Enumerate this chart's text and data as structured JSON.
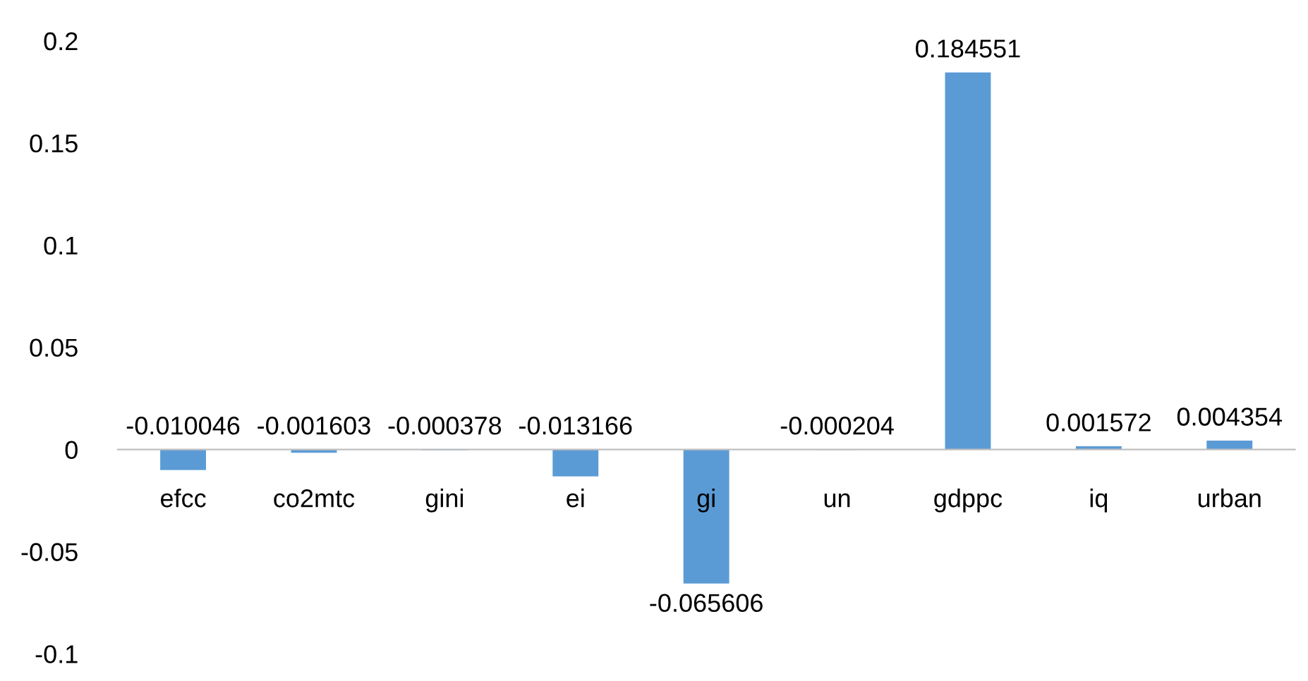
{
  "chart_data": {
    "type": "bar",
    "categories": [
      "efcc",
      "co2mtc",
      "gini",
      "ei",
      "gi",
      "un",
      "gdppc",
      "iq",
      "urban"
    ],
    "values": [
      -0.010046,
      -0.001603,
      -0.000378,
      -0.013166,
      -0.065606,
      -0.000204,
      0.184551,
      0.001572,
      0.004354
    ],
    "color": "#5b9bd5",
    "ylim": [
      -0.1,
      0.2
    ],
    "yticks": [
      -0.1,
      -0.05,
      0,
      0.05,
      0.1,
      0.15,
      0.2
    ],
    "grid": false,
    "data_labels": true
  }
}
